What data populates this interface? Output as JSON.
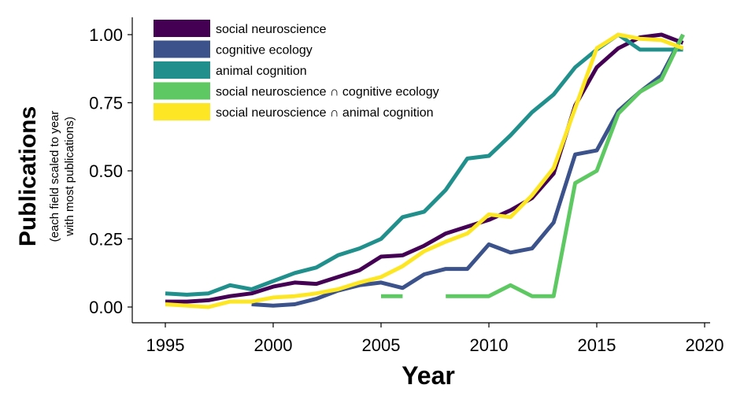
{
  "chart_data": {
    "type": "line",
    "xlabel": "Year",
    "ylabel": "Publications",
    "ylabel_sub": [
      "(each field scaled to year",
      "with most publications)"
    ],
    "xlim": [
      1995,
      2020
    ],
    "ylim": [
      0,
      1
    ],
    "x_ticks": [
      1995,
      2000,
      2005,
      2010,
      2015,
      2020
    ],
    "y_ticks": [
      0,
      0.25,
      0.5,
      0.75,
      1
    ],
    "y_tick_labels": [
      "0.00",
      "0.25",
      "0.50",
      "0.75",
      "1.00"
    ],
    "legend_position": "top-left",
    "grid": false,
    "series": [
      {
        "name": "social neuroscience",
        "color": "#440154",
        "points": [
          [
            1995,
            0.02
          ],
          [
            1996,
            0.02
          ],
          [
            1997,
            0.025
          ],
          [
            1998,
            0.04
          ],
          [
            1999,
            0.05
          ],
          [
            2000,
            0.075
          ],
          [
            2001,
            0.09
          ],
          [
            2002,
            0.085
          ],
          [
            2003,
            0.11
          ],
          [
            2004,
            0.135
          ],
          [
            2005,
            0.185
          ],
          [
            2006,
            0.19
          ],
          [
            2007,
            0.225
          ],
          [
            2008,
            0.27
          ],
          [
            2009,
            0.295
          ],
          [
            2010,
            0.32
          ],
          [
            2011,
            0.355
          ],
          [
            2012,
            0.4
          ],
          [
            2013,
            0.49
          ],
          [
            2014,
            0.74
          ],
          [
            2015,
            0.88
          ],
          [
            2016,
            0.95
          ],
          [
            2017,
            0.99
          ],
          [
            2018,
            1.0
          ],
          [
            2019,
            0.97
          ]
        ]
      },
      {
        "name": "cognitive ecology",
        "color": "#3b528b",
        "points": [
          [
            1999,
            0.01
          ],
          [
            2000,
            0.005
          ],
          [
            2001,
            0.01
          ],
          [
            2002,
            0.03
          ],
          [
            2003,
            0.06
          ],
          [
            2004,
            0.08
          ],
          [
            2005,
            0.09
          ],
          [
            2006,
            0.07
          ],
          [
            2007,
            0.12
          ],
          [
            2008,
            0.14
          ],
          [
            2009,
            0.14
          ],
          [
            2010,
            0.23
          ],
          [
            2011,
            0.2
          ],
          [
            2012,
            0.215
          ],
          [
            2013,
            0.31
          ],
          [
            2014,
            0.56
          ],
          [
            2015,
            0.575
          ],
          [
            2016,
            0.72
          ],
          [
            2017,
            0.79
          ],
          [
            2018,
            0.85
          ],
          [
            2019,
            1.0
          ]
        ]
      },
      {
        "name": "animal cognition",
        "color": "#21908c",
        "points": [
          [
            1995,
            0.05
          ],
          [
            1996,
            0.045
          ],
          [
            1997,
            0.05
          ],
          [
            1998,
            0.08
          ],
          [
            1999,
            0.065
          ],
          [
            2000,
            0.095
          ],
          [
            2001,
            0.125
          ],
          [
            2002,
            0.145
          ],
          [
            2003,
            0.19
          ],
          [
            2004,
            0.215
          ],
          [
            2005,
            0.25
          ],
          [
            2006,
            0.33
          ],
          [
            2007,
            0.35
          ],
          [
            2008,
            0.43
          ],
          [
            2009,
            0.545
          ],
          [
            2010,
            0.555
          ],
          [
            2011,
            0.63
          ],
          [
            2012,
            0.715
          ],
          [
            2013,
            0.78
          ],
          [
            2014,
            0.88
          ],
          [
            2015,
            0.945
          ],
          [
            2016,
            1.0
          ],
          [
            2017,
            0.945
          ],
          [
            2018,
            0.945
          ],
          [
            2019,
            0.945
          ]
        ]
      },
      {
        "name": "social neuroscience ∩ cognitive ecology",
        "color": "#5ec962",
        "segments": [
          [
            [
              2005,
              0.04
            ],
            [
              2006,
              0.04
            ]
          ],
          [
            [
              2008,
              0.04
            ],
            [
              2009,
              0.04
            ],
            [
              2010,
              0.04
            ],
            [
              2011,
              0.08
            ],
            [
              2012,
              0.04
            ],
            [
              2013,
              0.04
            ],
            [
              2014,
              0.455
            ],
            [
              2015,
              0.5
            ],
            [
              2016,
              0.71
            ],
            [
              2017,
              0.79
            ],
            [
              2018,
              0.835
            ],
            [
              2019,
              1.0
            ]
          ]
        ]
      },
      {
        "name": "social neuroscience ∩ animal cognition",
        "color": "#fde725",
        "points": [
          [
            1995,
            0.01
          ],
          [
            1996,
            0.005
          ],
          [
            1997,
            0.0
          ],
          [
            1998,
            0.02
          ],
          [
            1999,
            0.02
          ],
          [
            2000,
            0.035
          ],
          [
            2001,
            0.04
          ],
          [
            2002,
            0.05
          ],
          [
            2003,
            0.065
          ],
          [
            2004,
            0.09
          ],
          [
            2005,
            0.11
          ],
          [
            2006,
            0.15
          ],
          [
            2007,
            0.205
          ],
          [
            2008,
            0.24
          ],
          [
            2009,
            0.27
          ],
          [
            2010,
            0.34
          ],
          [
            2011,
            0.33
          ],
          [
            2012,
            0.41
          ],
          [
            2013,
            0.51
          ],
          [
            2014,
            0.73
          ],
          [
            2015,
            0.95
          ],
          [
            2016,
            1.0
          ],
          [
            2017,
            0.985
          ],
          [
            2018,
            0.98
          ],
          [
            2019,
            0.95
          ]
        ]
      }
    ]
  }
}
